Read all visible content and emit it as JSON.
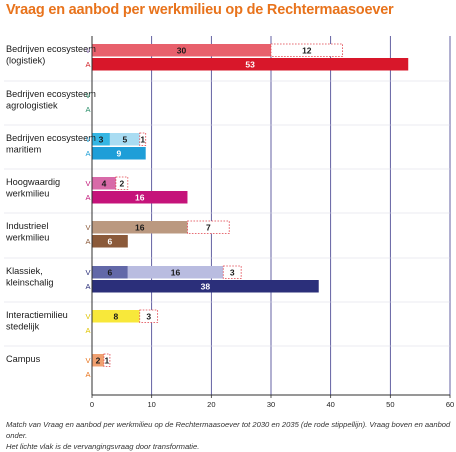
{
  "title": "Vraag en aanbod per werkmilieu op de Rechtermaasoever",
  "caption_line1": "Match van Vraag en aanbod per werkmilieu op de Rechtermaasoever tot 2030 en 2035 (de rode stippellijn). Vraag boven en aanbod onder.",
  "caption_line2": "Het lichte vlak is de vervangingsvraag door transformatie.",
  "colors": {
    "grid": "#3d3a8c",
    "axis": "#2f2f2f",
    "dashed_outline": "#e0404a",
    "v_letter": "#8a6fb0",
    "a_letter": "#d2232a"
  },
  "chart_data": {
    "type": "bar",
    "orientation": "horizontal",
    "stacked": true,
    "xlim": [
      0,
      60
    ],
    "xticks": [
      0,
      10,
      20,
      30,
      40,
      50,
      60
    ],
    "row_labels": [
      "V",
      "A"
    ],
    "categories": [
      {
        "label": [
          "Bedrijven ecosysteem",
          "(logistiek)"
        ],
        "v_letter_color": "#8a6fb0",
        "a_letter_color": "#d2232a",
        "vraag": [
          {
            "value": 30,
            "color": "#e8606c",
            "text_color": "#1a1a1a",
            "style": "solid"
          },
          {
            "value": 12,
            "color": "#ffffff",
            "text_color": "#1a1a1a",
            "style": "dashed"
          }
        ],
        "aanbod": [
          {
            "value": 53,
            "color": "#d8172a",
            "text_color": "#ffffff",
            "style": "solid"
          }
        ]
      },
      {
        "label": [
          "Bedrijven ecosysteem",
          "agrologistiek"
        ],
        "v_letter_color": "#2a8f6a",
        "a_letter_color": "#2a8f6a",
        "vraag": [],
        "aanbod": []
      },
      {
        "label": [
          "Bedrijven ecosysteem",
          "maritiem"
        ],
        "v_letter_color": "#1d9fd6",
        "a_letter_color": "#1d9fd6",
        "vraag": [
          {
            "value": 3,
            "color": "#35b6e3",
            "text_color": "#1a1a1a",
            "style": "solid"
          },
          {
            "value": 5,
            "color": "#a9dcf2",
            "text_color": "#1a1a1a",
            "style": "solid"
          },
          {
            "value": 1,
            "color": "#ffffff",
            "text_color": "#1a1a1a",
            "style": "dashed"
          }
        ],
        "aanbod": [
          {
            "value": 9,
            "color": "#1e9ed8",
            "text_color": "#ffffff",
            "style": "solid"
          }
        ]
      },
      {
        "label": [
          "Hoogwaardig",
          "werkmilieu"
        ],
        "v_letter_color": "#c2187a",
        "a_letter_color": "#c2187a",
        "vraag": [
          {
            "value": 4,
            "color": "#d86aa8",
            "text_color": "#1a1a1a",
            "style": "solid"
          },
          {
            "value": 2,
            "color": "#ffffff",
            "text_color": "#1a1a1a",
            "style": "dashed"
          }
        ],
        "aanbod": [
          {
            "value": 16,
            "color": "#c5137a",
            "text_color": "#ffffff",
            "style": "solid"
          }
        ]
      },
      {
        "label": [
          "Industrieel",
          "werkmilieu"
        ],
        "v_letter_color": "#8b5a3a",
        "a_letter_color": "#8b5a3a",
        "vraag": [
          {
            "value": 16,
            "color": "#bb9980",
            "text_color": "#1a1a1a",
            "style": "solid"
          },
          {
            "value": 7,
            "color": "#ffffff",
            "text_color": "#1a1a1a",
            "style": "dashed"
          }
        ],
        "aanbod": [
          {
            "value": 6,
            "color": "#8b5a3a",
            "text_color": "#ffffff",
            "style": "solid"
          }
        ]
      },
      {
        "label": [
          "Klassiek,",
          "kleinschalig"
        ],
        "v_letter_color": "#2b2f7a",
        "a_letter_color": "#2b2f7a",
        "vraag": [
          {
            "value": 6,
            "color": "#6268a8",
            "text_color": "#1a1a1a",
            "style": "solid"
          },
          {
            "value": 16,
            "color": "#b9bce0",
            "text_color": "#1a1a1a",
            "style": "solid"
          },
          {
            "value": 3,
            "color": "#ffffff",
            "text_color": "#1a1a1a",
            "style": "dashed"
          }
        ],
        "aanbod": [
          {
            "value": 38,
            "color": "#2b2f7a",
            "text_color": "#ffffff",
            "style": "solid"
          }
        ]
      },
      {
        "label": [
          "Interactiemilieu",
          "stedelijk"
        ],
        "v_letter_color": "#e0c400",
        "a_letter_color": "#e0c400",
        "vraag": [
          {
            "value": 8,
            "color": "#f8e83a",
            "text_color": "#1a1a1a",
            "style": "solid"
          },
          {
            "value": 3,
            "color": "#ffffff",
            "text_color": "#1a1a1a",
            "style": "dashed"
          }
        ],
        "aanbod": []
      },
      {
        "label": [
          "Campus"
        ],
        "v_letter_color": "#e8731c",
        "a_letter_color": "#e8731c",
        "vraag": [
          {
            "value": 2,
            "color": "#f0a070",
            "text_color": "#1a1a1a",
            "style": "solid"
          },
          {
            "value": 1,
            "color": "#ffffff",
            "text_color": "#1a1a1a",
            "style": "dashed"
          }
        ],
        "aanbod": []
      }
    ]
  }
}
